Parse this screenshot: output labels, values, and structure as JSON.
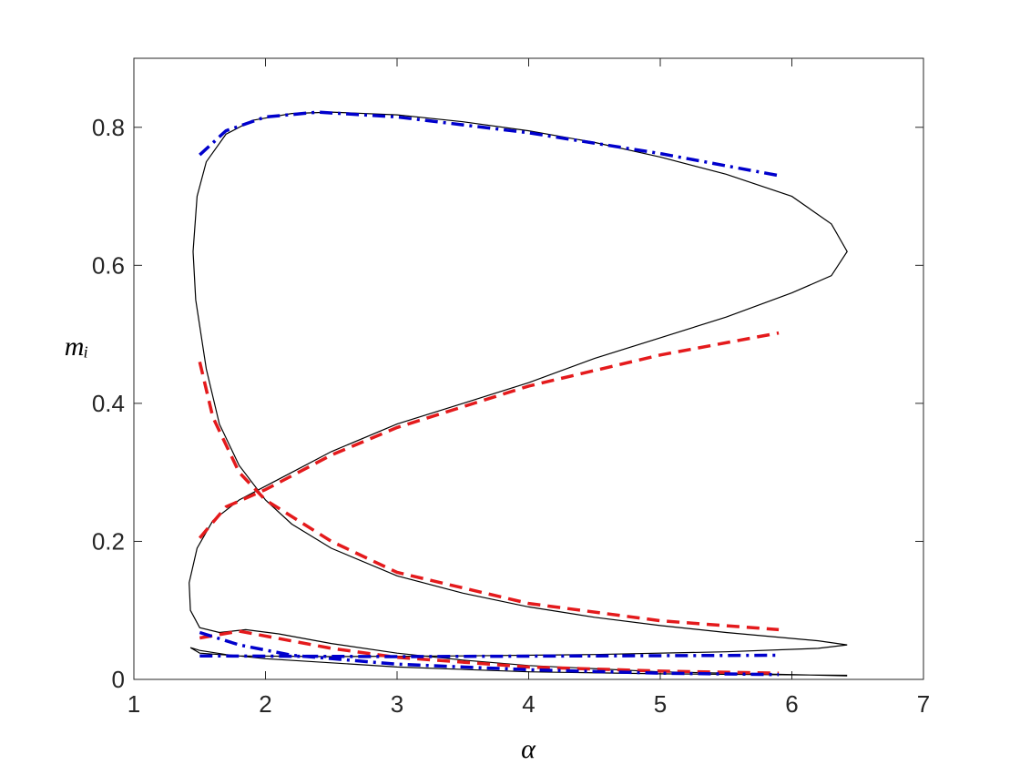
{
  "chart_data": {
    "type": "line",
    "xlabel": "α",
    "ylabel": "mᵢ",
    "xlim": [
      1,
      7
    ],
    "ylim": [
      0,
      0.9
    ],
    "xticks": [
      1,
      2,
      3,
      4,
      5,
      6,
      7
    ],
    "yticks": [
      0,
      0.2,
      0.4,
      0.6,
      0.8
    ],
    "grid": false,
    "series": [
      {
        "color": "#000000",
        "style": "solid",
        "x": [
          6.42,
          5,
          4,
          3,
          2.5,
          2,
          1.7,
          1.5,
          1.43,
          1.5,
          1.8,
          2.5,
          3.5,
          4.5,
          5.5,
          6.2,
          6.42,
          6.2,
          5.5,
          5,
          4.5,
          4,
          3.5,
          3,
          2.5,
          2.2,
          2,
          1.8,
          1.65,
          1.55,
          1.47,
          1.45,
          1.48,
          1.55,
          1.7,
          1.9,
          2.2,
          2.5,
          3,
          3.5,
          4,
          4.5,
          5,
          5.5,
          6,
          6.3,
          6.42,
          6.3,
          6,
          5.5,
          5,
          4.5,
          4,
          3.5,
          3,
          2.5,
          2.2,
          2,
          1.8,
          1.6,
          1.48,
          1.42,
          1.43,
          1.5,
          1.65,
          1.85,
          2.1,
          2.5,
          3,
          3.5,
          4,
          5,
          6,
          6.42
        ],
        "values": [
          0.006,
          0.008,
          0.011,
          0.018,
          0.024,
          0.03,
          0.036,
          0.042,
          0.046,
          0.038,
          0.034,
          0.033,
          0.034,
          0.036,
          0.04,
          0.045,
          0.05,
          0.056,
          0.068,
          0.078,
          0.09,
          0.105,
          0.125,
          0.15,
          0.19,
          0.225,
          0.26,
          0.31,
          0.37,
          0.45,
          0.55,
          0.62,
          0.7,
          0.75,
          0.79,
          0.81,
          0.82,
          0.822,
          0.818,
          0.808,
          0.795,
          0.778,
          0.757,
          0.732,
          0.7,
          0.66,
          0.62,
          0.585,
          0.56,
          0.525,
          0.495,
          0.465,
          0.43,
          0.4,
          0.37,
          0.33,
          0.3,
          0.28,
          0.26,
          0.23,
          0.19,
          0.14,
          0.1,
          0.075,
          0.068,
          0.072,
          0.066,
          0.052,
          0.038,
          0.028,
          0.02,
          0.011,
          0.007,
          0.005
        ]
      },
      {
        "color": "#e41a1c",
        "style": "dashed",
        "x": [
          1.5,
          1.6,
          1.8,
          2,
          2.5,
          3,
          4,
          5,
          5.9,
          null,
          1.5,
          1.7,
          2,
          2.5,
          3,
          4,
          5,
          5.9,
          null,
          1.5,
          1.8,
          2.5,
          3,
          4,
          5,
          5.9
        ],
        "values": [
          0.46,
          0.38,
          0.3,
          0.26,
          0.2,
          0.155,
          0.11,
          0.085,
          0.072,
          null,
          0.205,
          0.25,
          0.275,
          0.325,
          0.365,
          0.425,
          0.47,
          0.502,
          null,
          0.06,
          0.07,
          0.045,
          0.032,
          0.018,
          0.012,
          0.009
        ]
      },
      {
        "color": "#0000cc",
        "style": "dashdot",
        "x": [
          1.5,
          1.7,
          2,
          2.4,
          3,
          4,
          5,
          5.9,
          null,
          1.5,
          3,
          4.5,
          5.9,
          null,
          1.5,
          1.8,
          2.2,
          3,
          4,
          5,
          5.9
        ],
        "values": [
          0.76,
          0.795,
          0.815,
          0.822,
          0.815,
          0.792,
          0.762,
          0.73,
          null,
          0.034,
          0.033,
          0.034,
          0.035,
          null,
          0.068,
          0.05,
          0.035,
          0.022,
          0.014,
          0.009,
          0.007
        ]
      }
    ]
  }
}
